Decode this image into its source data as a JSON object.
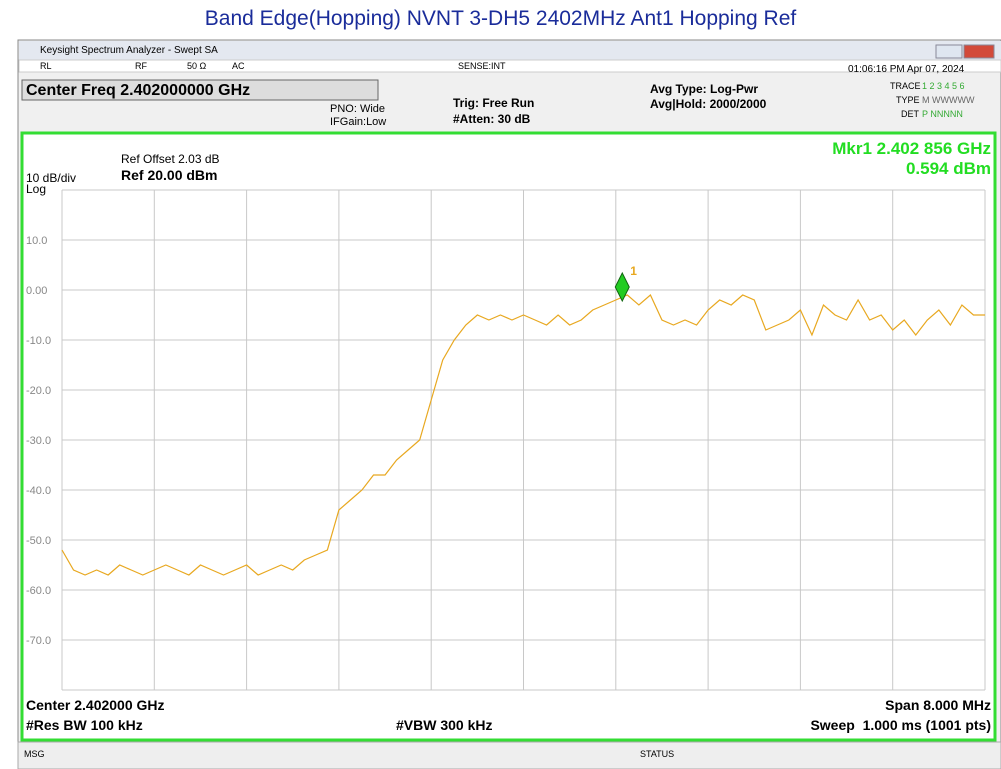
{
  "title": "Band Edge(Hopping) NVNT 3-DH5 2402MHz Ant1 Hopping Ref",
  "window": {
    "title": "Keysight Spectrum Analyzer - Swept SA"
  },
  "settings_bar": {
    "rl": "RL",
    "rf": "RF",
    "imp": "50 Ω",
    "ac": "AC",
    "sense": "SENSE:INT",
    "time": "01:06:16 PM Apr 07, 2024"
  },
  "header": {
    "center_freq": "Center Freq 2.402000000 GHz",
    "pno": "PNO: Wide",
    "ifgain": "IFGain:Low",
    "trig": "Trig: Free Run",
    "atten": "#Atten: 30 dB",
    "avg_type": "Avg Type: Log-Pwr",
    "avg_hold": "Avg|Hold: 2000/2000",
    "trace_label": "TRACE",
    "trace_nums": "1 2 3 4 5 6",
    "type_label": "TYPE",
    "type_val": "M WWWWW",
    "det_label": "DET",
    "det_val": "P NNNNN"
  },
  "screen": {
    "ref_offset": "Ref Offset 2.03 dB",
    "ref": "Ref 20.00 dBm",
    "scale": "10 dB/div",
    "log": "Log",
    "marker_freq": "Mkr1 2.402 856 GHz",
    "marker_value": "0.594 dBm",
    "center": "Center 2.402000 GHz",
    "span": "Span 8.000 MHz",
    "rbw": "#Res BW 100 kHz",
    "vbw": "#VBW 300 kHz",
    "sweep": "Sweep  1.000 ms (1001 pts)"
  },
  "chart_data": {
    "type": "line",
    "x": [
      2398.0,
      2398.1,
      2398.2,
      2398.3,
      2398.4,
      2398.5,
      2398.6,
      2398.7,
      2398.8,
      2398.9,
      2399.0,
      2399.1,
      2399.2,
      2399.3,
      2399.4,
      2399.5,
      2399.6,
      2399.7,
      2399.8,
      2399.9,
      2400.0,
      2400.1,
      2400.2,
      2400.3,
      2400.4,
      2400.5,
      2400.6,
      2400.7,
      2400.8,
      2400.9,
      2401.0,
      2401.1,
      2401.2,
      2401.3,
      2401.4,
      2401.5,
      2401.6,
      2401.7,
      2401.8,
      2401.9,
      2402.0,
      2402.1,
      2402.2,
      2402.3,
      2402.4,
      2402.5,
      2402.6,
      2402.7,
      2402.8,
      2402.9,
      2403.0,
      2403.1,
      2403.2,
      2403.3,
      2403.4,
      2403.5,
      2403.6,
      2403.7,
      2403.8,
      2403.9,
      2404.0,
      2404.1,
      2404.2,
      2404.3,
      2404.4,
      2404.5,
      2404.6,
      2404.7,
      2404.8,
      2404.9,
      2405.0,
      2405.1,
      2405.2,
      2405.3,
      2405.4,
      2405.5,
      2405.6,
      2405.7,
      2405.8,
      2405.9,
      2406.0
    ],
    "series": [
      {
        "color": "#e8a820",
        "values": [
          -52,
          -56,
          -57,
          -56,
          -57,
          -55,
          -56,
          -57,
          -56,
          -55,
          -56,
          -57,
          -55,
          -56,
          -57,
          -56,
          -55,
          -57,
          -56,
          -55,
          -56,
          -54,
          -53,
          -52,
          -44,
          -42,
          -40,
          -37,
          -37,
          -34,
          -32,
          -30,
          -22,
          -14,
          -10,
          -7,
          -5,
          -6,
          -5,
          -6,
          -5,
          -6,
          -7,
          -5,
          -7,
          -6,
          -4,
          -3,
          -2,
          -1,
          -3,
          -1,
          -6,
          -7,
          -6,
          -7,
          -4,
          -2,
          -3,
          -1,
          -2,
          -8,
          -7,
          -6,
          -4,
          -9,
          -3,
          -5,
          -6,
          -2,
          -6,
          -5,
          -8,
          -6,
          -9,
          -6,
          -4,
          -7,
          -3,
          -5,
          -5
        ]
      }
    ],
    "xlim": [
      2398,
      2406
    ],
    "ylim": [
      -80,
      20
    ],
    "xticks": [
      2398,
      2398.8,
      2399.6,
      2400.4,
      2401.2,
      2402,
      2402.8,
      2403.6,
      2404.4,
      2405.2,
      2406
    ],
    "yticks": [
      20,
      {
        "value": 10,
        "label": "10.0"
      },
      {
        "value": 0,
        "label": "0.00"
      },
      {
        "value": -10,
        "label": "-10.0"
      },
      {
        "value": -20,
        "label": "-20.0"
      },
      {
        "value": -30,
        "label": "-30.0"
      },
      {
        "value": -40,
        "label": "-40.0"
      },
      {
        "value": -50,
        "label": "-50.0"
      },
      {
        "value": -60,
        "label": "-60.0"
      },
      {
        "value": -70,
        "label": "-70.0"
      },
      -80
    ],
    "grid": true,
    "marker": {
      "label": "1",
      "x": 2402.856,
      "value": 0.594,
      "color": "#22cc22"
    }
  },
  "status": {
    "msg": "MSG",
    "status": "STATUS"
  }
}
